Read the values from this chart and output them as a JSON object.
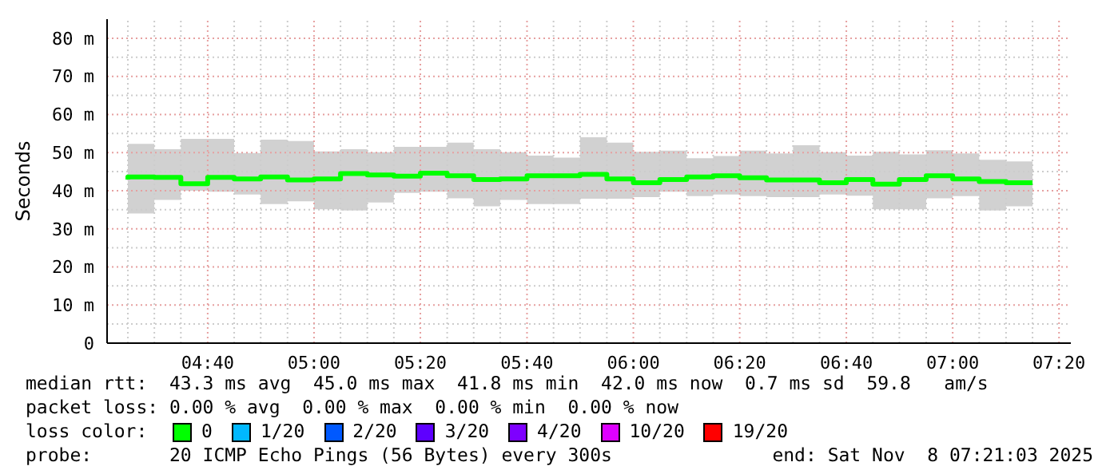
{
  "chart_data": {
    "type": "step",
    "ylabel": "Seconds",
    "x": [
      4.417,
      4.5,
      4.583,
      4.667,
      4.75,
      4.833,
      4.917,
      5,
      5.083,
      5.167,
      5.25,
      5.333,
      5.417,
      5.5,
      5.583,
      5.667,
      5.75,
      5.833,
      5.917,
      6,
      6.083,
      6.167,
      6.25,
      6.333,
      6.417,
      6.5,
      6.583,
      6.667,
      6.75,
      6.833,
      6.917,
      7,
      7.083,
      7.167,
      7.25
    ],
    "series": [
      {
        "name": "0",
        "color": "#00ff00",
        "values": [
          42.9,
          43.6,
          43.5,
          41.8,
          43.5,
          43.1,
          43.6,
          42.8,
          43.1,
          44.5,
          44.1,
          43.8,
          44.6,
          43.9,
          42.9,
          43.1,
          43.9,
          43.9,
          44.3,
          43.1,
          42.1,
          42.9,
          43.6,
          43.9,
          43.4,
          42.8,
          42.8,
          42.1,
          42.9,
          41.7,
          42.9,
          43.9,
          43.1,
          42.4,
          42.1
        ],
        "lower": [
          36.5,
          34.0,
          37.6,
          40.0,
          39.7,
          39.0,
          36.5,
          37.2,
          35.1,
          34.8,
          36.9,
          39.4,
          39.7,
          38.0,
          35.9,
          37.6,
          36.5,
          36.5,
          37.9,
          37.9,
          38.3,
          39.7,
          38.6,
          39.0,
          38.6,
          38.3,
          38.3,
          39.0,
          38.7,
          35.1,
          35.1,
          38.0,
          38.6,
          34.8,
          35.9
        ],
        "upper": [
          51.9,
          52.3,
          50.9,
          53.6,
          53.6,
          49.9,
          53.4,
          53.0,
          50.3,
          50.9,
          50.1,
          51.5,
          51.5,
          52.6,
          50.9,
          50.1,
          49.2,
          48.7,
          54.0,
          52.6,
          50.2,
          50.5,
          48.5,
          49.1,
          50.5,
          49.8,
          51.9,
          50.1,
          49.2,
          50.2,
          49.5,
          50.6,
          49.8,
          48.1,
          47.7
        ]
      },
      {
        "name": "1/20",
        "color": "#00b8ff",
        "values": [
          null,
          null,
          null,
          null,
          null,
          null,
          null,
          null,
          null,
          null,
          null,
          null,
          null,
          null,
          null,
          null,
          null,
          null,
          null,
          null,
          null,
          null,
          null,
          null,
          null,
          null,
          null,
          null,
          null,
          null,
          null,
          null,
          null,
          null,
          null
        ]
      },
      {
        "name": "2/20",
        "color": "#0059ff",
        "values": [
          null,
          null,
          null,
          null,
          null,
          null,
          null,
          null,
          null,
          null,
          null,
          null,
          null,
          null,
          null,
          null,
          null,
          null,
          null,
          null,
          null,
          null,
          null,
          null,
          null,
          null,
          null,
          null,
          null,
          null,
          null,
          null,
          null,
          null,
          null
        ]
      },
      {
        "name": "3/20",
        "color": "#5e00ff",
        "values": [
          null,
          null,
          null,
          null,
          null,
          null,
          null,
          null,
          null,
          null,
          null,
          null,
          null,
          null,
          null,
          null,
          null,
          null,
          null,
          null,
          null,
          null,
          null,
          null,
          null,
          null,
          null,
          null,
          null,
          null,
          null,
          null,
          null,
          null,
          null
        ]
      },
      {
        "name": "4/20",
        "color": "#7e00ff",
        "values": [
          null,
          null,
          null,
          null,
          null,
          null,
          null,
          null,
          null,
          null,
          null,
          null,
          null,
          null,
          null,
          null,
          null,
          null,
          null,
          null,
          null,
          null,
          null,
          null,
          null,
          null,
          null,
          null,
          null,
          null,
          null,
          null,
          null,
          null,
          null
        ]
      },
      {
        "name": "10/20",
        "color": "#dd00ff",
        "values": [
          null,
          null,
          null,
          null,
          null,
          null,
          null,
          null,
          null,
          null,
          null,
          null,
          null,
          null,
          null,
          null,
          null,
          null,
          null,
          null,
          null,
          null,
          null,
          null,
          null,
          null,
          null,
          null,
          null,
          null,
          null,
          null,
          null,
          null,
          null
        ]
      },
      {
        "name": "19/20",
        "color": "#ff0000",
        "values": [
          null,
          null,
          null,
          null,
          null,
          null,
          null,
          null,
          null,
          null,
          null,
          null,
          null,
          null,
          null,
          null,
          null,
          null,
          null,
          null,
          null,
          null,
          null,
          null,
          null,
          null,
          null,
          null,
          null,
          null,
          null,
          null,
          null,
          null,
          null
        ]
      }
    ],
    "legend_title": "loss color:",
    "legend": "bottom",
    "xlim": [
      4.352,
      7.37
    ],
    "ylim": [
      0,
      85
    ],
    "xticks": [
      {
        "value": 4.417,
        "label": null
      },
      {
        "value": 4.5,
        "label": null
      },
      {
        "value": 4.583,
        "label": null
      },
      {
        "value": 4.667,
        "label": "04:40"
      },
      {
        "value": 4.75,
        "label": null
      },
      {
        "value": 4.833,
        "label": null
      },
      {
        "value": 4.917,
        "label": null
      },
      {
        "value": 5,
        "label": "05:00"
      },
      {
        "value": 5.083,
        "label": null
      },
      {
        "value": 5.167,
        "label": null
      },
      {
        "value": 5.25,
        "label": null
      },
      {
        "value": 5.333,
        "label": "05:20"
      },
      {
        "value": 5.417,
        "label": null
      },
      {
        "value": 5.5,
        "label": null
      },
      {
        "value": 5.583,
        "label": null
      },
      {
        "value": 5.667,
        "label": "05:40"
      },
      {
        "value": 5.75,
        "label": null
      },
      {
        "value": 5.833,
        "label": null
      },
      {
        "value": 5.917,
        "label": null
      },
      {
        "value": 6,
        "label": "06:00"
      },
      {
        "value": 6.083,
        "label": null
      },
      {
        "value": 6.167,
        "label": null
      },
      {
        "value": 6.25,
        "label": null
      },
      {
        "value": 6.333,
        "label": "06:20"
      },
      {
        "value": 6.417,
        "label": null
      },
      {
        "value": 6.5,
        "label": null
      },
      {
        "value": 6.583,
        "label": null
      },
      {
        "value": 6.667,
        "label": "06:40"
      },
      {
        "value": 6.75,
        "label": null
      },
      {
        "value": 6.833,
        "label": null
      },
      {
        "value": 6.917,
        "label": null
      },
      {
        "value": 7,
        "label": "07:00"
      },
      {
        "value": 7.083,
        "label": null
      },
      {
        "value": 7.167,
        "label": null
      },
      {
        "value": 7.25,
        "label": null
      },
      {
        "value": 7.333,
        "label": "07:20"
      }
    ],
    "yticks": [
      0,
      {
        "value": 5,
        "label": null
      },
      {
        "value": 10,
        "label": "10 m"
      },
      {
        "value": 15,
        "label": null
      },
      {
        "value": 20,
        "label": "20 m"
      },
      {
        "value": 25,
        "label": null
      },
      {
        "value": 30,
        "label": "30 m"
      },
      {
        "value": 35,
        "label": null
      },
      {
        "value": 40,
        "label": "40 m"
      },
      {
        "value": 45,
        "label": null
      },
      {
        "value": 50,
        "label": "50 m"
      },
      {
        "value": 55,
        "label": null
      },
      {
        "value": 60,
        "label": "60 m"
      },
      {
        "value": 65,
        "label": null
      },
      {
        "value": 70,
        "label": "70 m"
      },
      {
        "value": 75,
        "label": null
      },
      {
        "value": 80,
        "label": "80 m"
      }
    ],
    "grid": true,
    "line_style": "solid",
    "marker": "none",
    "annotations": [
      "median rtt:  43.3 ms avg  45.0 ms max  41.8 ms min  42.0 ms now  0.7 ms sd  59.8   am/s",
      "packet loss: 0.00 % avg  0.00 % max  0.00 % min  0.00 % now",
      "probe:       20 ICMP Echo Pings (56 Bytes) every 300s",
      "end: Sat Nov  8 07:21:03 2025"
    ]
  }
}
